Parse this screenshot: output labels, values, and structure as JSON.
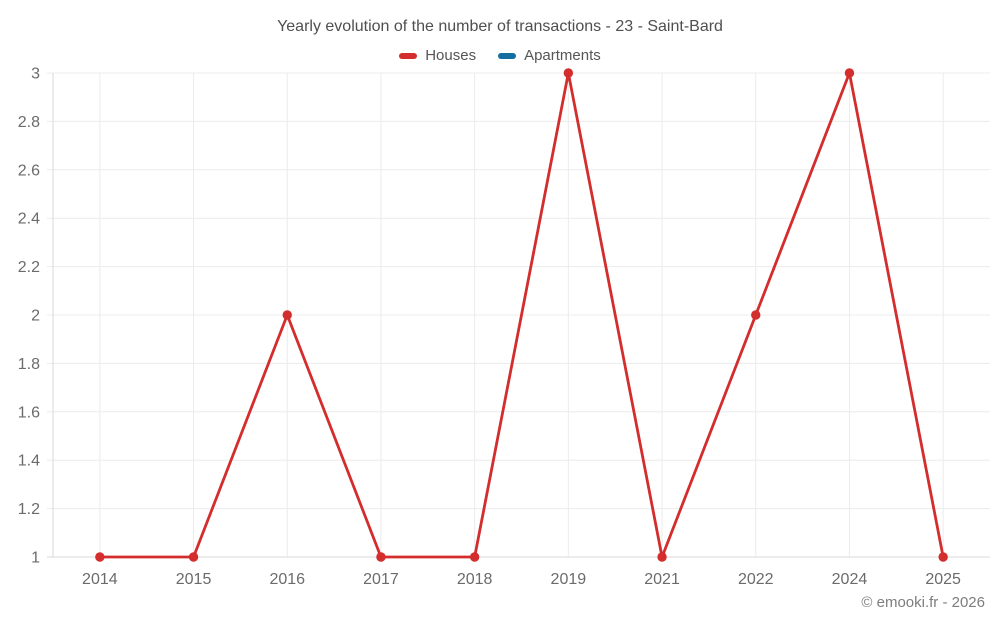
{
  "title": "Yearly evolution of the number of transactions - 23 - Saint-Bard",
  "legend": [
    {
      "label": "Houses",
      "color": "#d32d2d"
    },
    {
      "label": "Apartments",
      "color": "#146e9f"
    }
  ],
  "footer": "© emooki.fr - 2026",
  "colors": {
    "background": "#ffffff",
    "grid": "#ececec",
    "axis": "#d9d9d9",
    "tick_label": "#6b6b6b",
    "title": "#4f4f4f",
    "legend_label": "#565656",
    "footer": "#7d7d7d"
  },
  "chart_data": {
    "type": "line",
    "title": "Yearly evolution of the number of transactions - 23 - Saint-Bard",
    "categories": [
      "2014",
      "2015",
      "2016",
      "2017",
      "2018",
      "2019",
      "2021",
      "2022",
      "2024",
      "2025"
    ],
    "series": [
      {
        "name": "Houses",
        "color": "#d32d2d",
        "values": [
          1,
          1,
          2,
          1,
          1,
          3,
          1,
          2,
          3,
          1
        ]
      },
      {
        "name": "Apartments",
        "color": "#146e9f",
        "values": [
          null,
          null,
          null,
          null,
          null,
          null,
          null,
          null,
          null,
          null
        ]
      }
    ],
    "xlabel": "",
    "ylabel": "",
    "ylim": [
      1,
      3
    ],
    "yticks": [
      "1",
      "1.2",
      "1.4",
      "1.6",
      "1.8",
      "2",
      "2.2",
      "2.4",
      "2.6",
      "2.8",
      "3"
    ],
    "grid": true,
    "legend_position": "top",
    "point_radius": 4.7,
    "line_width": 2.8
  }
}
